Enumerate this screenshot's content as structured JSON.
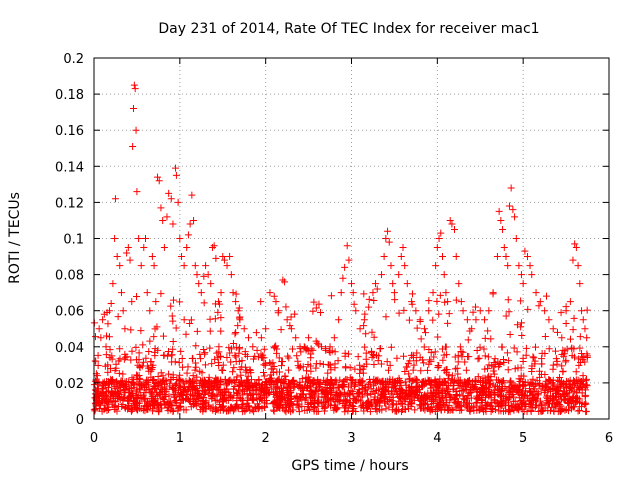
{
  "chart_data": {
    "type": "scatter",
    "title": "Day 231 of 2014, Rate Of TEC Index for receiver mac1",
    "xlabel": "GPS time / hours",
    "ylabel": "ROTI / TECUs",
    "xlim": [
      0,
      6
    ],
    "ylim": [
      0,
      0.2
    ],
    "x_ticks": [
      0,
      1,
      2,
      3,
      4,
      5,
      6
    ],
    "x_tick_labels": [
      "0",
      "1",
      "2",
      "3",
      "4",
      "5",
      "6"
    ],
    "y_ticks": [
      0,
      0.02,
      0.04,
      0.06,
      0.08,
      0.1,
      0.12,
      0.14,
      0.16,
      0.18,
      0.2
    ],
    "y_tick_labels": [
      "0",
      "0.02",
      "0.04",
      "0.06",
      "0.08",
      "0.1",
      "0.12",
      "0.14",
      "0.16",
      "0.18",
      "0.2"
    ],
    "grid": true,
    "marker": "+",
    "marker_color": "#ff0000",
    "series": [
      {
        "name": "ROTI",
        "points": [
          [
            0.02,
            0.032
          ],
          [
            0.04,
            0.024
          ],
          [
            0.06,
            0.05
          ],
          [
            0.08,
            0.045
          ],
          [
            0.1,
            0.055
          ],
          [
            0.12,
            0.058
          ],
          [
            0.14,
            0.04
          ],
          [
            0.16,
            0.03
          ],
          [
            0.18,
            0.06
          ],
          [
            0.2,
            0.064
          ],
          [
            0.22,
            0.075
          ],
          [
            0.24,
            0.1
          ],
          [
            0.25,
            0.122
          ],
          [
            0.27,
            0.09
          ],
          [
            0.3,
            0.085
          ],
          [
            0.32,
            0.07
          ],
          [
            0.34,
            0.06
          ],
          [
            0.36,
            0.05
          ],
          [
            0.38,
            0.092
          ],
          [
            0.4,
            0.095
          ],
          [
            0.42,
            0.088
          ],
          [
            0.44,
            0.065
          ],
          [
            0.45,
            0.151
          ],
          [
            0.46,
            0.172
          ],
          [
            0.47,
            0.185
          ],
          [
            0.48,
            0.183
          ],
          [
            0.49,
            0.16
          ],
          [
            0.5,
            0.126
          ],
          [
            0.52,
            0.1
          ],
          [
            0.55,
            0.085
          ],
          [
            0.58,
            0.095
          ],
          [
            0.6,
            0.1
          ],
          [
            0.62,
            0.07
          ],
          [
            0.65,
            0.06
          ],
          [
            0.68,
            0.09
          ],
          [
            0.7,
            0.085
          ],
          [
            0.72,
            0.065
          ],
          [
            0.74,
            0.134
          ],
          [
            0.76,
            0.132
          ],
          [
            0.78,
            0.117
          ],
          [
            0.8,
            0.11
          ],
          [
            0.82,
            0.095
          ],
          [
            0.85,
            0.112
          ],
          [
            0.87,
            0.125
          ],
          [
            0.9,
            0.122
          ],
          [
            0.92,
            0.108
          ],
          [
            0.95,
            0.139
          ],
          [
            0.96,
            0.135
          ],
          [
            0.98,
            0.12
          ],
          [
            1.0,
            0.1
          ],
          [
            1.02,
            0.09
          ],
          [
            1.05,
            0.085
          ],
          [
            1.08,
            0.095
          ],
          [
            1.1,
            0.102
          ],
          [
            1.12,
            0.108
          ],
          [
            1.14,
            0.124
          ],
          [
            1.16,
            0.11
          ],
          [
            1.18,
            0.085
          ],
          [
            1.2,
            0.08
          ],
          [
            1.22,
            0.075
          ],
          [
            1.25,
            0.07
          ],
          [
            1.28,
            0.079
          ],
          [
            1.3,
            0.085
          ],
          [
            1.33,
            0.08
          ],
          [
            1.36,
            0.075
          ],
          [
            1.38,
            0.095
          ],
          [
            1.4,
            0.096
          ],
          [
            1.42,
            0.089
          ],
          [
            1.45,
            0.065
          ],
          [
            1.48,
            0.07
          ],
          [
            1.5,
            0.09
          ],
          [
            1.52,
            0.088
          ],
          [
            1.55,
            0.085
          ],
          [
            1.58,
            0.09
          ],
          [
            1.6,
            0.08
          ],
          [
            1.62,
            0.07
          ],
          [
            1.65,
            0.065
          ],
          [
            1.68,
            0.06
          ],
          [
            1.7,
            0.055
          ],
          [
            1.75,
            0.05
          ],
          [
            1.8,
            0.045
          ],
          [
            1.85,
            0.04
          ],
          [
            1.9,
            0.038
          ],
          [
            1.95,
            0.045
          ],
          [
            2.0,
            0.05
          ],
          [
            2.05,
            0.07
          ],
          [
            2.1,
            0.068
          ],
          [
            2.12,
            0.065
          ],
          [
            2.15,
            0.06
          ],
          [
            2.2,
            0.077
          ],
          [
            2.22,
            0.076
          ],
          [
            2.25,
            0.055
          ],
          [
            2.3,
            0.05
          ],
          [
            2.35,
            0.045
          ],
          [
            2.4,
            0.04
          ],
          [
            2.45,
            0.04
          ],
          [
            2.5,
            0.045
          ],
          [
            2.55,
            0.038
          ],
          [
            2.6,
            0.042
          ],
          [
            2.65,
            0.04
          ],
          [
            2.7,
            0.038
          ],
          [
            2.75,
            0.04
          ],
          [
            2.8,
            0.045
          ],
          [
            2.85,
            0.055
          ],
          [
            2.88,
            0.07
          ],
          [
            2.9,
            0.078
          ],
          [
            2.92,
            0.084
          ],
          [
            2.95,
            0.096
          ],
          [
            2.97,
            0.088
          ],
          [
            3.0,
            0.075
          ],
          [
            3.02,
            0.07
          ],
          [
            3.05,
            0.06
          ],
          [
            3.1,
            0.05
          ],
          [
            3.15,
            0.055
          ],
          [
            3.2,
            0.062
          ],
          [
            3.25,
            0.07
          ],
          [
            3.28,
            0.075
          ],
          [
            3.3,
            0.072
          ],
          [
            3.35,
            0.08
          ],
          [
            3.38,
            0.09
          ],
          [
            3.4,
            0.1
          ],
          [
            3.42,
            0.104
          ],
          [
            3.44,
            0.098
          ],
          [
            3.46,
            0.085
          ],
          [
            3.48,
            0.075
          ],
          [
            3.5,
            0.07
          ],
          [
            3.55,
            0.08
          ],
          [
            3.58,
            0.09
          ],
          [
            3.6,
            0.095
          ],
          [
            3.62,
            0.085
          ],
          [
            3.65,
            0.075
          ],
          [
            3.7,
            0.065
          ],
          [
            3.75,
            0.06
          ],
          [
            3.8,
            0.055
          ],
          [
            3.85,
            0.05
          ],
          [
            3.9,
            0.06
          ],
          [
            3.95,
            0.07
          ],
          [
            3.98,
            0.085
          ],
          [
            4.0,
            0.095
          ],
          [
            4.02,
            0.1
          ],
          [
            4.04,
            0.103
          ],
          [
            4.06,
            0.09
          ],
          [
            4.08,
            0.08
          ],
          [
            4.1,
            0.07
          ],
          [
            4.12,
            0.065
          ],
          [
            4.15,
            0.11
          ],
          [
            4.17,
            0.108
          ],
          [
            4.2,
            0.105
          ],
          [
            4.22,
            0.09
          ],
          [
            4.25,
            0.075
          ],
          [
            4.28,
            0.065
          ],
          [
            4.3,
            0.06
          ],
          [
            4.35,
            0.055
          ],
          [
            4.4,
            0.05
          ],
          [
            4.45,
            0.055
          ],
          [
            4.5,
            0.06
          ],
          [
            4.55,
            0.055
          ],
          [
            4.6,
            0.06
          ],
          [
            4.65,
            0.07
          ],
          [
            4.7,
            0.09
          ],
          [
            4.72,
            0.115
          ],
          [
            4.74,
            0.11
          ],
          [
            4.76,
            0.105
          ],
          [
            4.78,
            0.095
          ],
          [
            4.8,
            0.09
          ],
          [
            4.82,
            0.085
          ],
          [
            4.84,
            0.118
          ],
          [
            4.86,
            0.128
          ],
          [
            4.88,
            0.116
          ],
          [
            4.9,
            0.112
          ],
          [
            4.92,
            0.1
          ],
          [
            4.95,
            0.085
          ],
          [
            4.98,
            0.08
          ],
          [
            5.0,
            0.075
          ],
          [
            5.02,
            0.093
          ],
          [
            5.05,
            0.09
          ],
          [
            5.08,
            0.085
          ],
          [
            5.1,
            0.08
          ],
          [
            5.15,
            0.07
          ],
          [
            5.2,
            0.065
          ],
          [
            5.25,
            0.06
          ],
          [
            5.3,
            0.055
          ],
          [
            5.35,
            0.05
          ],
          [
            5.4,
            0.048
          ],
          [
            5.45,
            0.045
          ],
          [
            5.5,
            0.06
          ],
          [
            5.55,
            0.065
          ],
          [
            5.58,
            0.088
          ],
          [
            5.6,
            0.097
          ],
          [
            5.62,
            0.095
          ],
          [
            5.64,
            0.085
          ],
          [
            5.66,
            0.075
          ],
          [
            5.68,
            0.06
          ],
          [
            5.7,
            0.055
          ],
          [
            5.72,
            0.05
          ],
          [
            5.74,
            0.045
          ],
          [
            5.75,
            0.035
          ]
        ]
      }
    ]
  }
}
